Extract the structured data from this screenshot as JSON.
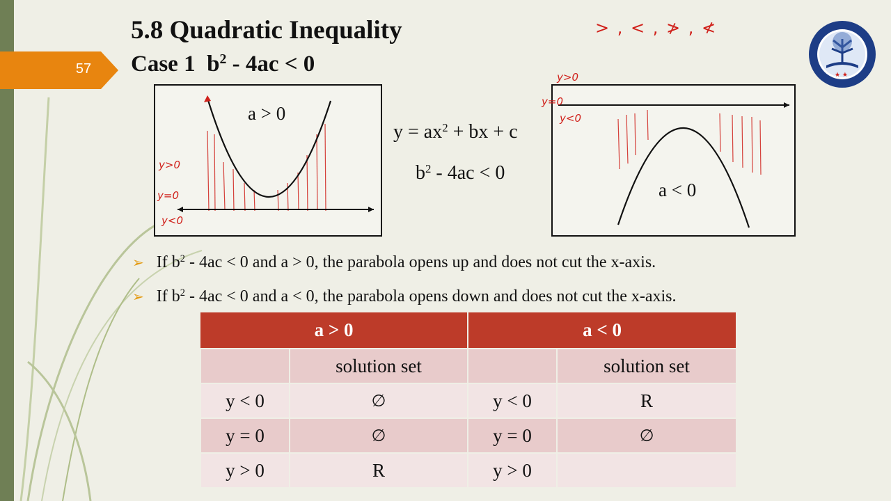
{
  "slide": {
    "page_number": "57",
    "title": "5.8 Quadratic Inequality",
    "subtitle_case": "Case 1",
    "subtitle_expr_a": "b",
    "subtitle_expr_sup": "2",
    "subtitle_expr_b": " - 4ac < 0",
    "handwritten_symbols": ">  ,  <  ,  ≯  ,  ≮",
    "colors": {
      "accent_orange": "#e8850f",
      "table_header": "#bd3b29",
      "pen_red": "#d0211b",
      "left_bar": "#6f7f55"
    }
  },
  "graph_left": {
    "label": "a > 0",
    "hand_labels": {
      "pos": "y>0",
      "zero": "y=0",
      "neg": "y<0"
    }
  },
  "graph_right": {
    "label": "a < 0",
    "hand_labels": {
      "pos": "y>0",
      "zero": "y=0",
      "neg": "y<0"
    }
  },
  "center": {
    "eq1_a": "y = ax",
    "eq1_sup": "2",
    "eq1_b": " + bx + c",
    "eq2_a": "b",
    "eq2_sup": "2",
    "eq2_b": " - 4ac < 0"
  },
  "bullets": [
    {
      "a": "If b",
      "sup": "2",
      "b": " - 4ac < 0 and a > 0, the parabola opens up and does not cut the x-axis."
    },
    {
      "a": "If b",
      "sup": "2",
      "b": " - 4ac < 0 and a < 0, the parabola opens down and does not cut the x-axis."
    }
  ],
  "table": {
    "header_left": "a > 0",
    "header_right": "a < 0",
    "subheader": "solution set",
    "rows": [
      {
        "cond_left": "y < 0",
        "val_left": "∅",
        "cond_right": "y < 0",
        "val_right": "R"
      },
      {
        "cond_left": "y = 0",
        "val_left": "∅",
        "cond_right": "y = 0",
        "val_right": "∅"
      },
      {
        "cond_left": "y > 0",
        "val_left": "R",
        "cond_right": "y > 0",
        "val_right": ""
      }
    ]
  }
}
